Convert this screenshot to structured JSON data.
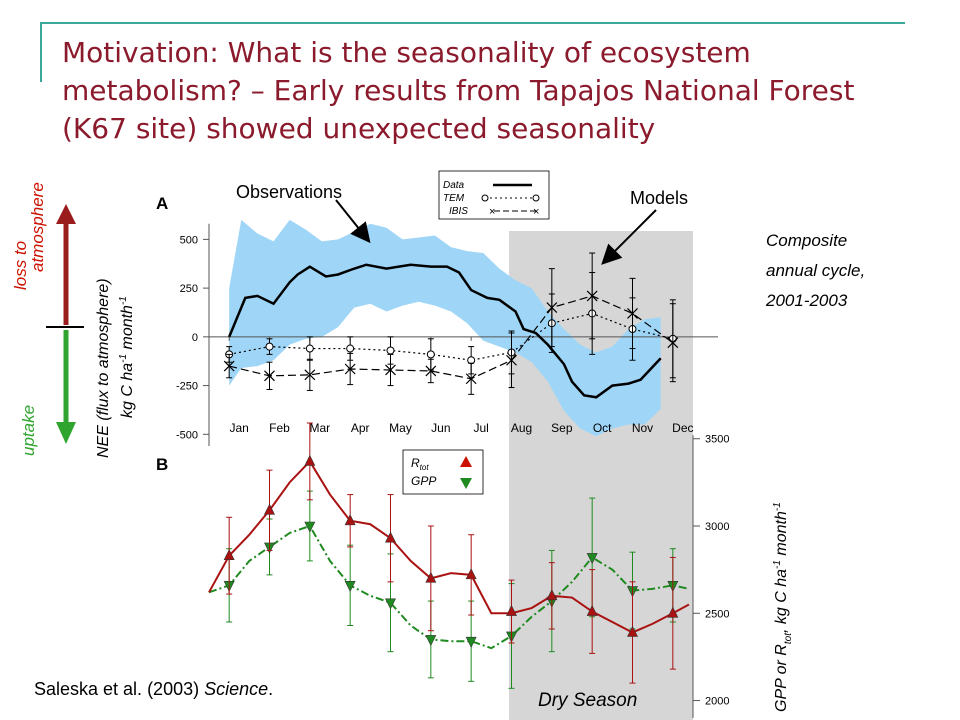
{
  "slide": {
    "title_lines": [
      "Motivation:  What is the seasonality of ecosystem",
      "metabolism? – Early results from Tapajos National Forest",
      "(K67 site) showed unexpected seasonality"
    ],
    "label_A": "A",
    "label_B": "B",
    "observations_label": "Observations",
    "models_label": "Models",
    "composite_text": [
      "Composite",
      "annual cycle,",
      "2001-2003"
    ],
    "loss_label": [
      "loss to",
      "atmosphere"
    ],
    "uptake_label": "uptake",
    "nee_ylabel": [
      "NEE (flux to atmosphere)",
      "kg C ha",
      "-1",
      " month",
      "-1"
    ],
    "gpp_ylabel": [
      "GPP or R",
      "tot",
      ", kg C ha",
      "-1",
      " month",
      "-1"
    ],
    "dry_season_label": "Dry Season",
    "citation_author": "Saleska et al. (2003) ",
    "citation_journal": "Science",
    "citation_end": ".",
    "colors": {
      "title": "#8b1a2c",
      "band": "#9fd6f7",
      "dry": "#d6d6d6",
      "rtot": "#cc1100",
      "gpp": "#1f8a1f",
      "arrow_up": "#9b1c1c",
      "arrow_down": "#2fa52f",
      "accent_line": "#3aa79b"
    }
  },
  "chart_data": [
    {
      "type": "line",
      "panel": "A",
      "categories": [
        "Jan",
        "Feb",
        "Mar",
        "Apr",
        "May",
        "Jun",
        "Jul",
        "Aug",
        "Sep",
        "Oct",
        "Nov",
        "Dec"
      ],
      "ylim": [
        -560,
        620
      ],
      "yticks": [
        -500,
        -250,
        0,
        250,
        500
      ],
      "legend": {
        "title": "Data",
        "entries": [
          "TEM",
          "IBIS"
        ]
      },
      "series": [
        {
          "name": "Data",
          "style": "solid",
          "x": [
            0.5,
            0.9,
            1.2,
            1.6,
            2.0,
            2.2,
            2.5,
            2.9,
            3.2,
            3.6,
            3.9,
            4.4,
            5.0,
            5.5,
            5.9,
            6.2,
            6.5,
            6.9,
            7.2,
            7.6,
            7.8,
            8.1,
            8.4,
            8.8,
            9.0,
            9.3,
            9.6,
            10.0,
            10.4,
            10.7,
            11.2
          ],
          "values": [
            0,
            200,
            210,
            170,
            280,
            320,
            360,
            310,
            320,
            350,
            370,
            350,
            370,
            360,
            360,
            330,
            240,
            200,
            190,
            130,
            40,
            20,
            -40,
            -140,
            -230,
            -300,
            -310,
            -250,
            -240,
            -220,
            -110
          ]
        },
        {
          "name": "Data band upper",
          "x": [
            0.5,
            0.8,
            1.2,
            1.6,
            2.0,
            2.4,
            2.8,
            3.2,
            3.6,
            4.0,
            4.4,
            4.8,
            5.2,
            5.6,
            6.0,
            6.4,
            6.8,
            7.2,
            7.6,
            8.0,
            8.4,
            8.8,
            9.2,
            9.6,
            10.0,
            10.4,
            10.8,
            11.2
          ],
          "values": [
            250,
            600,
            530,
            490,
            600,
            550,
            490,
            500,
            540,
            580,
            560,
            500,
            510,
            520,
            460,
            440,
            430,
            350,
            290,
            250,
            130,
            40,
            -40,
            -80,
            -50,
            40,
            90,
            100
          ]
        },
        {
          "name": "Data band lower",
          "x": [
            0.5,
            0.8,
            1.2,
            1.6,
            2.0,
            2.4,
            2.8,
            3.2,
            3.6,
            4.0,
            4.4,
            4.8,
            5.2,
            5.6,
            6.0,
            6.4,
            6.8,
            7.2,
            7.6,
            8.0,
            8.4,
            8.8,
            9.2,
            9.6,
            10.0,
            10.4,
            10.8,
            11.2
          ],
          "values": [
            -250,
            -160,
            -150,
            -120,
            -40,
            -10,
            0,
            50,
            150,
            170,
            130,
            160,
            180,
            160,
            130,
            70,
            -20,
            -50,
            -80,
            -130,
            -230,
            -380,
            -470,
            -510,
            -470,
            -450,
            -450,
            -370
          ]
        },
        {
          "name": "TEM",
          "style": "dotted",
          "x": [
            0.5,
            1.5,
            2.5,
            3.5,
            4.5,
            5.5,
            6.5,
            7.5,
            8.5,
            9.5,
            10.5,
            11.5
          ],
          "values": [
            -90,
            -50,
            -60,
            -60,
            -70,
            -90,
            -120,
            -80,
            70,
            120,
            40,
            -10
          ],
          "err": [
            40,
            40,
            60,
            60,
            70,
            80,
            70,
            110,
            150,
            210,
            160,
            200
          ]
        },
        {
          "name": "IBIS",
          "style": "dashed",
          "x": [
            0.5,
            1.5,
            2.5,
            3.5,
            4.5,
            5.5,
            6.5,
            7.5,
            8.5,
            9.5,
            10.5,
            11.5
          ],
          "values": [
            -150,
            -200,
            -195,
            -165,
            -170,
            -175,
            -215,
            -120,
            150,
            210,
            120,
            -30
          ],
          "err": [
            60,
            70,
            80,
            80,
            80,
            60,
            80,
            140,
            200,
            220,
            180,
            200
          ]
        }
      ]
    },
    {
      "type": "line",
      "panel": "B",
      "ylim": [
        1900,
        3550
      ],
      "yticks": [
        2000,
        2500,
        3000,
        3500
      ],
      "legend": {
        "entries": [
          "R",
          "GPP"
        ]
      },
      "series": [
        {
          "name": "R",
          "marker": "triangle-up",
          "style": "solid",
          "x": [
            0.5,
            1.5,
            2.5,
            3.5,
            4.5,
            5.5,
            6.5,
            7.5,
            8.5,
            9.5,
            10.5,
            11.5
          ],
          "values": [
            2830,
            3090,
            3370,
            3030,
            2930,
            2700,
            2720,
            2510,
            2600,
            2510,
            2390,
            2500
          ],
          "err": [
            220,
            230,
            220,
            150,
            250,
            300,
            230,
            180,
            190,
            240,
            290,
            320
          ],
          "line_x": [
            0,
            0.5,
            1.0,
            1.5,
            2.0,
            2.5,
            3.0,
            3.5,
            4.0,
            4.5,
            5.0,
            5.5,
            6.0,
            6.5,
            7.0,
            7.5,
            8.0,
            8.5,
            9.0,
            9.5,
            10.0,
            10.5,
            11.0,
            11.5,
            11.9
          ],
          "line_y": [
            2620,
            2830,
            2950,
            3090,
            3250,
            3370,
            3180,
            3030,
            3010,
            2930,
            2800,
            2700,
            2730,
            2720,
            2500,
            2500,
            2530,
            2600,
            2590,
            2510,
            2450,
            2390,
            2440,
            2500,
            2550
          ]
        },
        {
          "name": "GPP",
          "marker": "triangle-down",
          "style": "dash-dot",
          "x": [
            0.5,
            1.5,
            2.5,
            3.5,
            4.5,
            5.5,
            6.5,
            7.5,
            8.5,
            9.5,
            10.5,
            11.5
          ],
          "values": [
            2660,
            2880,
            3000,
            2660,
            2560,
            2350,
            2340,
            2370,
            2570,
            2820,
            2630,
            2660
          ],
          "err": [
            210,
            160,
            200,
            230,
            280,
            220,
            230,
            300,
            290,
            340,
            220,
            210
          ],
          "line_x": [
            0,
            0.5,
            1.0,
            1.5,
            2.0,
            2.5,
            3.0,
            3.5,
            4.0,
            4.5,
            5.0,
            5.5,
            6.0,
            6.5,
            7.0,
            7.5,
            8.0,
            8.5,
            9.0,
            9.5,
            10.0,
            10.5,
            11.0,
            11.5,
            11.9
          ],
          "line_y": [
            2620,
            2660,
            2800,
            2880,
            2960,
            3000,
            2800,
            2660,
            2600,
            2560,
            2430,
            2350,
            2340,
            2340,
            2300,
            2370,
            2480,
            2570,
            2680,
            2820,
            2750,
            2630,
            2640,
            2660,
            2640
          ]
        }
      ]
    }
  ]
}
